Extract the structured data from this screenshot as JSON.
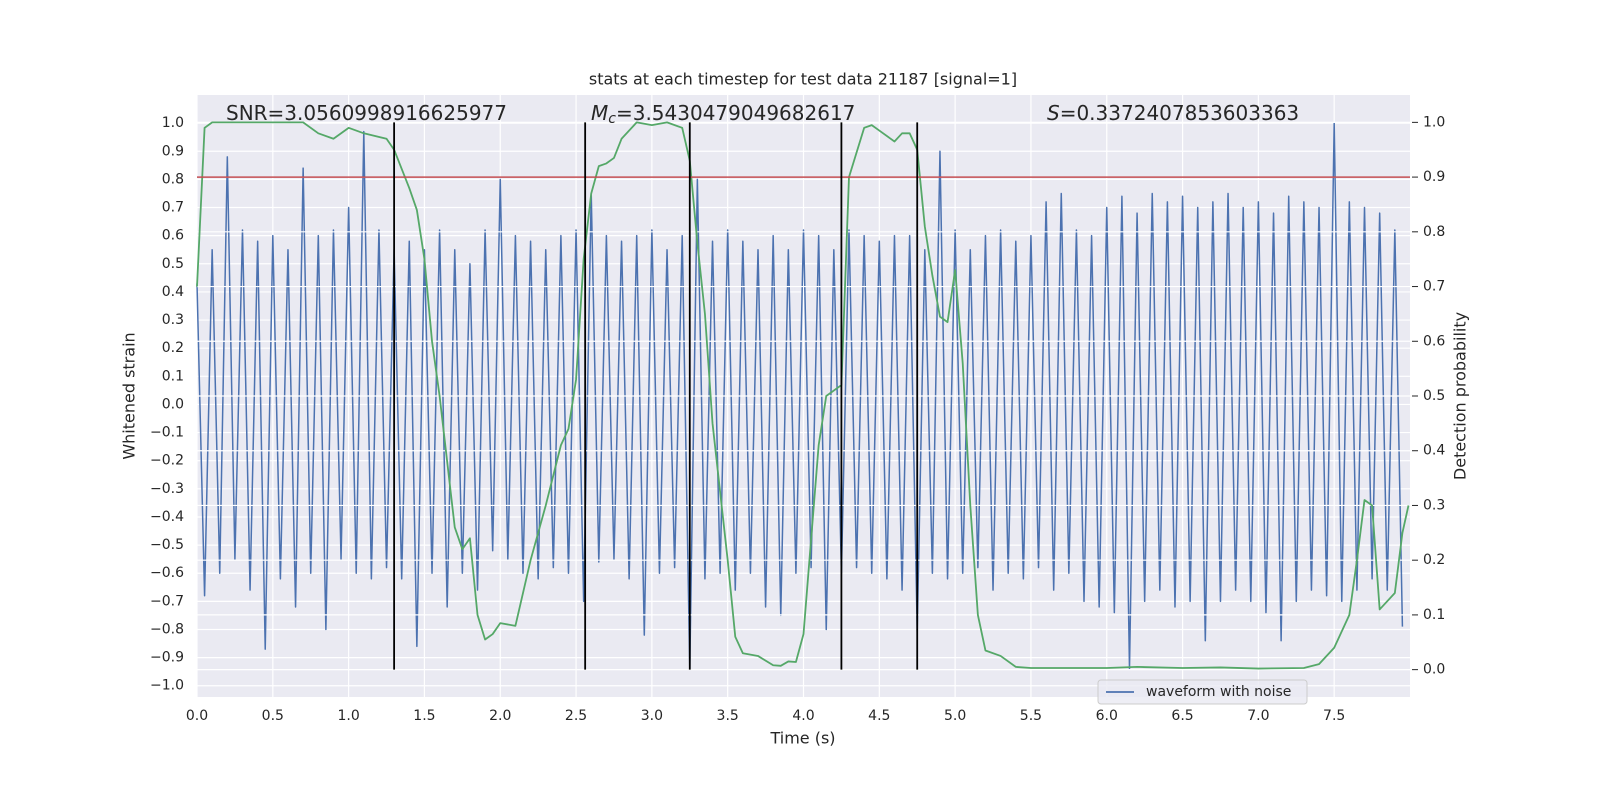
{
  "chart_data": {
    "type": "line",
    "title": "stats at each timestep for test data 21187 [signal=1]",
    "xlabel": "Time (s)",
    "ylabel": "Whitened strain",
    "y2label": "Detection probability",
    "xlim": [
      0,
      8.0
    ],
    "ylim": [
      -1.04,
      1.1
    ],
    "y2lim": [
      -0.05,
      1.05
    ],
    "grid": true,
    "legend": "lower right",
    "xticks": [
      {
        "value": 0,
        "label": "0.0"
      },
      {
        "value": 0.5,
        "label": "0.5"
      },
      {
        "value": 1,
        "label": "1.0"
      },
      {
        "value": 1.5,
        "label": "1.5"
      },
      {
        "value": 2,
        "label": "2.0"
      },
      {
        "value": 2.5,
        "label": "2.5"
      },
      {
        "value": 3,
        "label": "3.0"
      },
      {
        "value": 3.5,
        "label": "3.5"
      },
      {
        "value": 4,
        "label": "4.0"
      },
      {
        "value": 4.5,
        "label": "4.5"
      },
      {
        "value": 5,
        "label": "5.0"
      },
      {
        "value": 5.5,
        "label": "5.5"
      },
      {
        "value": 6,
        "label": "6.0"
      },
      {
        "value": 6.5,
        "label": "6.5"
      },
      {
        "value": 7,
        "label": "7.0"
      },
      {
        "value": 7.5,
        "label": "7.5"
      }
    ],
    "yticks": [
      {
        "value": -1,
        "label": "−1.0"
      },
      {
        "value": -0.9,
        "label": "−0.9"
      },
      {
        "value": -0.8,
        "label": "−0.8"
      },
      {
        "value": -0.7,
        "label": "−0.7"
      },
      {
        "value": -0.6,
        "label": "−0.6"
      },
      {
        "value": -0.5,
        "label": "−0.5"
      },
      {
        "value": -0.4,
        "label": "−0.4"
      },
      {
        "value": -0.3,
        "label": "−0.3"
      },
      {
        "value": -0.2,
        "label": "−0.2"
      },
      {
        "value": -0.1,
        "label": "−0.1"
      },
      {
        "value": 0,
        "label": "0.0"
      },
      {
        "value": 0.1,
        "label": "0.1"
      },
      {
        "value": 0.2,
        "label": "0.2"
      },
      {
        "value": 0.3,
        "label": "0.3"
      },
      {
        "value": 0.4,
        "label": "0.4"
      },
      {
        "value": 0.5,
        "label": "0.5"
      },
      {
        "value": 0.6,
        "label": "0.6"
      },
      {
        "value": 0.7,
        "label": "0.7"
      },
      {
        "value": 0.8,
        "label": "0.8"
      },
      {
        "value": 0.9,
        "label": "0.9"
      },
      {
        "value": 1,
        "label": "1.0"
      }
    ],
    "y2ticks": [
      {
        "value": 0,
        "label": "0.0"
      },
      {
        "value": 0.1,
        "label": "0.1"
      },
      {
        "value": 0.2,
        "label": "0.2"
      },
      {
        "value": 0.3,
        "label": "0.3"
      },
      {
        "value": 0.4,
        "label": "0.4"
      },
      {
        "value": 0.5,
        "label": "0.5"
      },
      {
        "value": 0.6,
        "label": "0.6"
      },
      {
        "value": 0.7,
        "label": "0.7"
      },
      {
        "value": 0.8,
        "label": "0.8"
      },
      {
        "value": 0.9,
        "label": "0.9"
      },
      {
        "value": 1,
        "label": "1.0"
      }
    ],
    "series": [
      {
        "name": "waveform with noise",
        "color": "#4c72b0",
        "x": [
          0,
          0.05,
          0.1,
          0.15,
          0.2,
          0.25,
          0.3,
          0.35,
          0.4,
          0.45,
          0.5,
          0.55,
          0.6,
          0.65,
          0.7,
          0.75,
          0.8,
          0.85,
          0.9,
          0.95,
          1,
          1.05,
          1.1,
          1.15,
          1.2,
          1.25,
          1.3,
          1.35,
          1.4,
          1.45,
          1.5,
          1.55,
          1.6,
          1.65,
          1.7,
          1.75,
          1.8,
          1.85,
          1.9,
          1.95,
          2,
          2.05,
          2.1,
          2.15,
          2.2,
          2.25,
          2.3,
          2.35,
          2.4,
          2.45,
          2.5,
          2.55,
          2.6,
          2.65,
          2.7,
          2.75,
          2.8,
          2.85,
          2.9,
          2.95,
          3,
          3.05,
          3.1,
          3.15,
          3.2,
          3.25,
          3.3,
          3.35,
          3.4,
          3.45,
          3.5,
          3.55,
          3.6,
          3.65,
          3.7,
          3.75,
          3.8,
          3.85,
          3.9,
          3.95,
          4,
          4.05,
          4.1,
          4.15,
          4.2,
          4.25,
          4.3,
          4.35,
          4.4,
          4.45,
          4.5,
          4.55,
          4.6,
          4.65,
          4.7,
          4.75,
          4.8,
          4.85,
          4.9,
          4.95,
          5,
          5.05,
          5.1,
          5.15,
          5.2,
          5.25,
          5.3,
          5.35,
          5.4,
          5.45,
          5.5,
          5.55,
          5.6,
          5.65,
          5.7,
          5.75,
          5.8,
          5.85,
          5.9,
          5.95,
          6,
          6.05,
          6.1,
          6.15,
          6.2,
          6.25,
          6.3,
          6.35,
          6.4,
          6.45,
          6.5,
          6.55,
          6.6,
          6.65,
          6.7,
          6.75,
          6.8,
          6.85,
          6.9,
          6.95,
          7,
          7.05,
          7.1,
          7.15,
          7.2,
          7.25,
          7.3,
          7.35,
          7.4,
          7.45,
          7.5,
          7.55,
          7.6,
          7.65,
          7.7,
          7.75,
          7.8,
          7.85,
          7.9,
          7.95
        ],
        "values": [
          0.43,
          -0.68,
          0.55,
          -0.6,
          0.88,
          -0.55,
          0.62,
          -0.66,
          0.58,
          -0.87,
          0.6,
          -0.62,
          0.55,
          -0.72,
          0.84,
          -0.6,
          0.6,
          -0.8,
          0.62,
          -0.55,
          0.7,
          -0.6,
          0.97,
          -0.62,
          0.62,
          -0.58,
          0.55,
          -0.62,
          0.58,
          -0.86,
          0.55,
          -0.6,
          0.62,
          -0.72,
          0.55,
          -0.6,
          0.5,
          -0.66,
          0.62,
          -0.52,
          0.8,
          -0.55,
          0.6,
          -0.6,
          0.58,
          -0.62,
          0.55,
          -0.58,
          0.6,
          -0.6,
          0.62,
          -0.7,
          0.75,
          -0.56,
          0.6,
          -0.55,
          0.58,
          -0.62,
          0.6,
          -0.82,
          0.62,
          -0.6,
          0.55,
          -0.58,
          0.6,
          -0.94,
          0.8,
          -0.62,
          0.58,
          -0.6,
          0.62,
          -0.66,
          0.58,
          -0.6,
          0.55,
          -0.72,
          0.6,
          -0.75,
          0.55,
          -0.6,
          0.62,
          -0.58,
          0.6,
          -0.8,
          0.55,
          -0.6,
          0.62,
          -0.58,
          0.6,
          -0.6,
          0.58,
          -0.62,
          0.6,
          -0.66,
          0.6,
          -0.81,
          0.55,
          -0.6,
          0.9,
          -0.62,
          0.62,
          -0.6,
          0.55,
          -0.58,
          0.6,
          -0.66,
          0.62,
          -0.6,
          0.58,
          -0.62,
          0.6,
          -0.58,
          0.72,
          -0.66,
          0.75,
          -0.6,
          0.62,
          -0.7,
          0.6,
          -0.72,
          0.7,
          -0.74,
          0.74,
          -0.94,
          0.68,
          -0.7,
          0.75,
          -0.66,
          0.72,
          -0.72,
          0.74,
          -0.7,
          0.7,
          -0.84,
          0.72,
          -0.7,
          0.75,
          -0.66,
          0.7,
          -0.7,
          0.72,
          -0.74,
          0.68,
          -0.84,
          0.74,
          -0.7,
          0.72,
          -0.66,
          0.7,
          -0.68,
          1.0,
          -0.7,
          0.72,
          -0.66,
          0.7,
          -0.62,
          0.68,
          -0.66,
          0.62,
          -0.79
        ]
      },
      {
        "color": "#55a868",
        "axis": "y2",
        "x": [
          0,
          0.05,
          0.1,
          0.3,
          0.6,
          0.7,
          0.8,
          0.9,
          1.0,
          1.1,
          1.25,
          1.3,
          1.4,
          1.45,
          1.5,
          1.55,
          1.6,
          1.65,
          1.7,
          1.75,
          1.8,
          1.85,
          1.9,
          1.95,
          2.0,
          2.1,
          2.2,
          2.3,
          2.4,
          2.45,
          2.5,
          2.55,
          2.6,
          2.65,
          2.7,
          2.75,
          2.8,
          2.9,
          3.0,
          3.1,
          3.2,
          3.25,
          3.3,
          3.35,
          3.4,
          3.5,
          3.55,
          3.6,
          3.7,
          3.8,
          3.85,
          3.9,
          3.95,
          4.0,
          4.1,
          4.15,
          4.25,
          4.3,
          4.4,
          4.45,
          4.5,
          4.6,
          4.65,
          4.7,
          4.75,
          4.8,
          4.85,
          4.9,
          4.95,
          5.0,
          5.05,
          5.1,
          5.15,
          5.2,
          5.3,
          5.4,
          5.5,
          6.0,
          6.2,
          6.5,
          6.75,
          7.0,
          7.3,
          7.4,
          7.5,
          7.6,
          7.65,
          7.7,
          7.75,
          7.8,
          7.9,
          7.95,
          7.99
        ],
        "values": [
          0.7,
          0.99,
          1.0,
          1.0,
          1.0,
          1.0,
          0.98,
          0.97,
          0.99,
          0.98,
          0.97,
          0.95,
          0.88,
          0.84,
          0.75,
          0.6,
          0.5,
          0.38,
          0.26,
          0.22,
          0.24,
          0.1,
          0.055,
          0.065,
          0.085,
          0.08,
          0.2,
          0.3,
          0.41,
          0.44,
          0.53,
          0.75,
          0.87,
          0.92,
          0.925,
          0.935,
          0.97,
          1.0,
          0.995,
          1.0,
          0.99,
          0.93,
          0.78,
          0.65,
          0.45,
          0.2,
          0.06,
          0.03,
          0.025,
          0.008,
          0.007,
          0.015,
          0.014,
          0.065,
          0.41,
          0.5,
          0.52,
          0.9,
          0.99,
          0.995,
          0.985,
          0.965,
          0.98,
          0.98,
          0.95,
          0.81,
          0.72,
          0.645,
          0.635,
          0.73,
          0.56,
          0.3,
          0.1,
          0.035,
          0.025,
          0.005,
          0.003,
          0.003,
          0.005,
          0.003,
          0.004,
          0.002,
          0.003,
          0.01,
          0.04,
          0.1,
          0.2,
          0.31,
          0.3,
          0.11,
          0.14,
          0.25,
          0.3
        ]
      }
    ],
    "hlines": [
      {
        "y": 0.9,
        "axis": "y2",
        "color": "#c44e52"
      }
    ],
    "vlines": {
      "x": [
        1.3,
        2.56,
        3.25,
        4.25,
        4.75
      ],
      "ymin": 0,
      "ymax": 1,
      "axis": "y2",
      "color": "#000000"
    },
    "annotations": [
      {
        "text": "SNR=3.0560998916625977"
      },
      {
        "symbol": "M",
        "subscript": "c",
        "text": "=3.5430479049682617"
      },
      {
        "symbol": "S",
        "text": "=0.3372407853603363"
      }
    ]
  }
}
